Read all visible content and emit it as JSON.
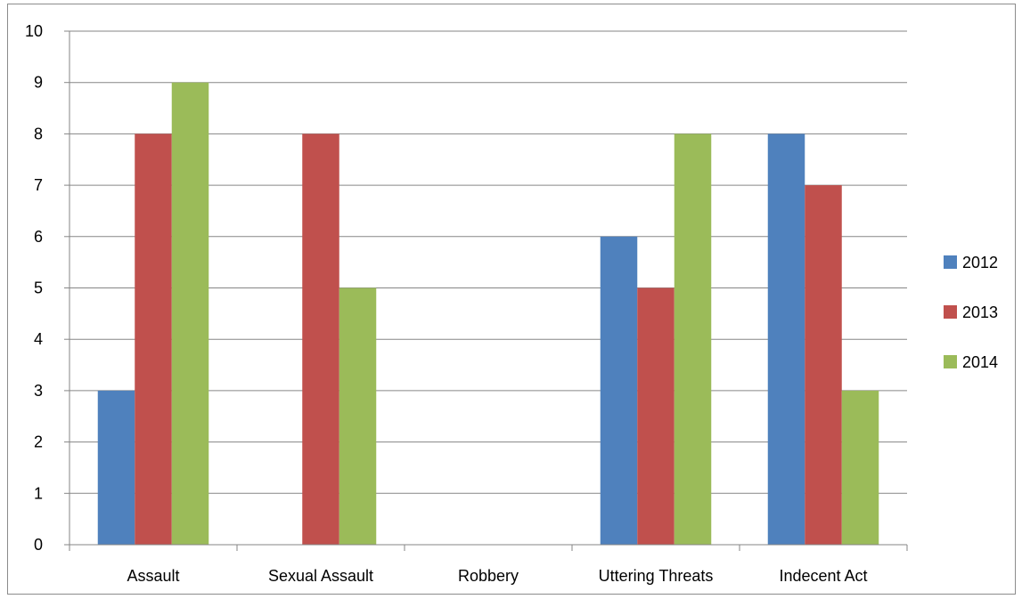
{
  "chart_data": {
    "type": "bar",
    "title": "",
    "xlabel": "",
    "ylabel": "",
    "categories": [
      "Assault",
      "Sexual Assault",
      "Robbery",
      "Uttering Threats",
      "Indecent Act"
    ],
    "series": [
      {
        "name": "2012",
        "color": "#4F81BD",
        "values": [
          3,
          0,
          0,
          6,
          8
        ]
      },
      {
        "name": "2013",
        "color": "#C0504D",
        "values": [
          8,
          8,
          0,
          5,
          7
        ]
      },
      {
        "name": "2014",
        "color": "#9BBB59",
        "values": [
          9,
          5,
          0,
          8,
          3
        ]
      }
    ],
    "ylim": [
      0,
      10
    ],
    "yticks": [
      "0",
      "1",
      "2",
      "3",
      "4",
      "5",
      "6",
      "7",
      "8",
      "9",
      "10"
    ],
    "grid": true,
    "legend_position": "right"
  }
}
